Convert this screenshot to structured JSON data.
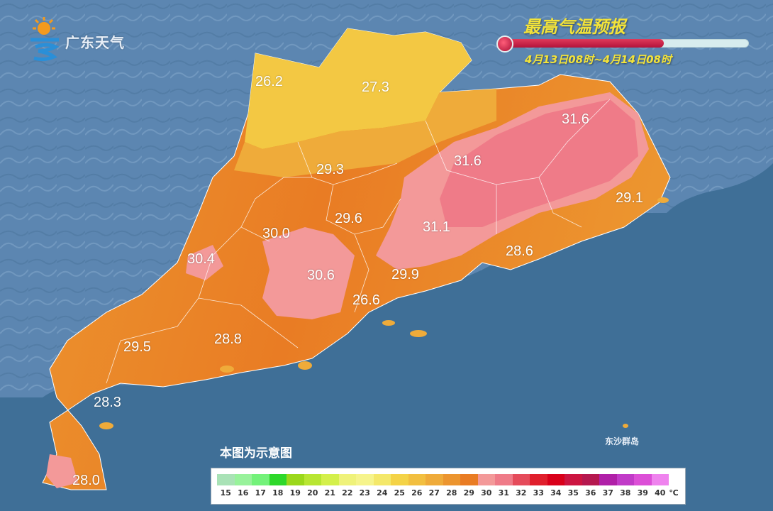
{
  "header": {
    "logo_text": "广东天气",
    "title": "最高气温预报",
    "date_range": "4月13日08时~4月14日08时"
  },
  "note": "本图为示意图",
  "island_label": "东沙群岛",
  "cities": [
    {
      "id": "shaoguan-west",
      "value": "26.2"
    },
    {
      "id": "shaoguan-north",
      "value": "27.3"
    },
    {
      "id": "meizhou",
      "value": "31.6"
    },
    {
      "id": "heyuan-east",
      "value": "31.6"
    },
    {
      "id": "qingyuan",
      "value": "29.3"
    },
    {
      "id": "shantou",
      "value": "29.1"
    },
    {
      "id": "heyuan",
      "value": "29.6"
    },
    {
      "id": "guangzhou-west",
      "value": "30.0"
    },
    {
      "id": "huizhou",
      "value": "31.1"
    },
    {
      "id": "yunfu",
      "value": "30.4"
    },
    {
      "id": "shanwei",
      "value": "28.6"
    },
    {
      "id": "foshan",
      "value": "30.6"
    },
    {
      "id": "dongguan",
      "value": "29.9"
    },
    {
      "id": "zhongshan",
      "value": "26.6"
    },
    {
      "id": "maoming",
      "value": "29.5"
    },
    {
      "id": "jiangmen",
      "value": "28.8"
    },
    {
      "id": "zhanjiang-north",
      "value": "28.3"
    },
    {
      "id": "zhanjiang-south",
      "value": "28.0"
    }
  ],
  "legend": {
    "unit": "℃",
    "ticks": [
      "15",
      "16",
      "17",
      "18",
      "19",
      "20",
      "21",
      "22",
      "23",
      "24",
      "25",
      "26",
      "27",
      "28",
      "29",
      "30",
      "31",
      "32",
      "33",
      "34",
      "35",
      "36",
      "37",
      "38",
      "39",
      "40"
    ],
    "colors": [
      "#a9e2b6",
      "#98f29b",
      "#73f27a",
      "#2ed82a",
      "#9bd81b",
      "#b8e632",
      "#d4f04b",
      "#eff27a",
      "#f6f48c",
      "#f4e86a",
      "#f4d347",
      "#f2bf40",
      "#efab3a",
      "#ec952f",
      "#e97c24",
      "#f39999",
      "#ef7b88",
      "#e54b5b",
      "#e01f2c",
      "#d9001a",
      "#cc1541",
      "#b5184f",
      "#b020a8",
      "#c13bc8",
      "#dc4fd7",
      "#ef83ee"
    ]
  }
}
